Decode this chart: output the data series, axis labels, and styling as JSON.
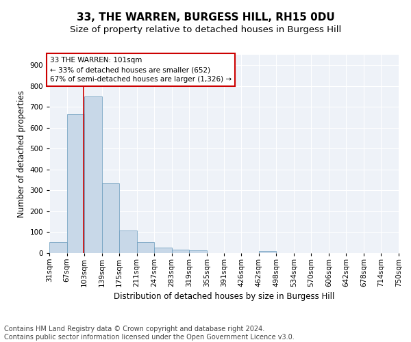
{
  "title1": "33, THE WARREN, BURGESS HILL, RH15 0DU",
  "title2": "Size of property relative to detached houses in Burgess Hill",
  "xlabel": "Distribution of detached houses by size in Burgess Hill",
  "ylabel": "Number of detached properties",
  "footnote1": "Contains HM Land Registry data © Crown copyright and database right 2024.",
  "footnote2": "Contains public sector information licensed under the Open Government Licence v3.0.",
  "bin_labels": [
    "31sqm",
    "67sqm",
    "103sqm",
    "139sqm",
    "175sqm",
    "211sqm",
    "247sqm",
    "283sqm",
    "319sqm",
    "355sqm",
    "391sqm",
    "426sqm",
    "462sqm",
    "498sqm",
    "534sqm",
    "570sqm",
    "606sqm",
    "642sqm",
    "678sqm",
    "714sqm",
    "750sqm"
  ],
  "bar_heights": [
    52,
    665,
    750,
    335,
    108,
    52,
    25,
    18,
    14,
    0,
    0,
    0,
    10,
    0,
    0,
    0,
    0,
    0,
    0,
    0
  ],
  "bar_color": "#c8d8e8",
  "bar_edge_color": "#6699bb",
  "property_line_x": 101,
  "property_line_color": "#cc0000",
  "annotation_text": "33 THE WARREN: 101sqm\n← 33% of detached houses are smaller (652)\n67% of semi-detached houses are larger (1,326) →",
  "annotation_box_color": "#cc0000",
  "ylim": [
    0,
    950
  ],
  "yticks": [
    0,
    100,
    200,
    300,
    400,
    500,
    600,
    700,
    800,
    900
  ],
  "bg_color": "#eef2f8",
  "grid_color": "#ffffff",
  "title1_fontsize": 11,
  "title2_fontsize": 9.5,
  "axis_label_fontsize": 8.5,
  "tick_fontsize": 7.5,
  "footnote_fontsize": 7,
  "bin_edges": [
    31,
    67,
    103,
    139,
    175,
    211,
    247,
    283,
    319,
    355,
    391,
    426,
    462,
    498,
    534,
    570,
    606,
    642,
    678,
    714,
    750
  ]
}
